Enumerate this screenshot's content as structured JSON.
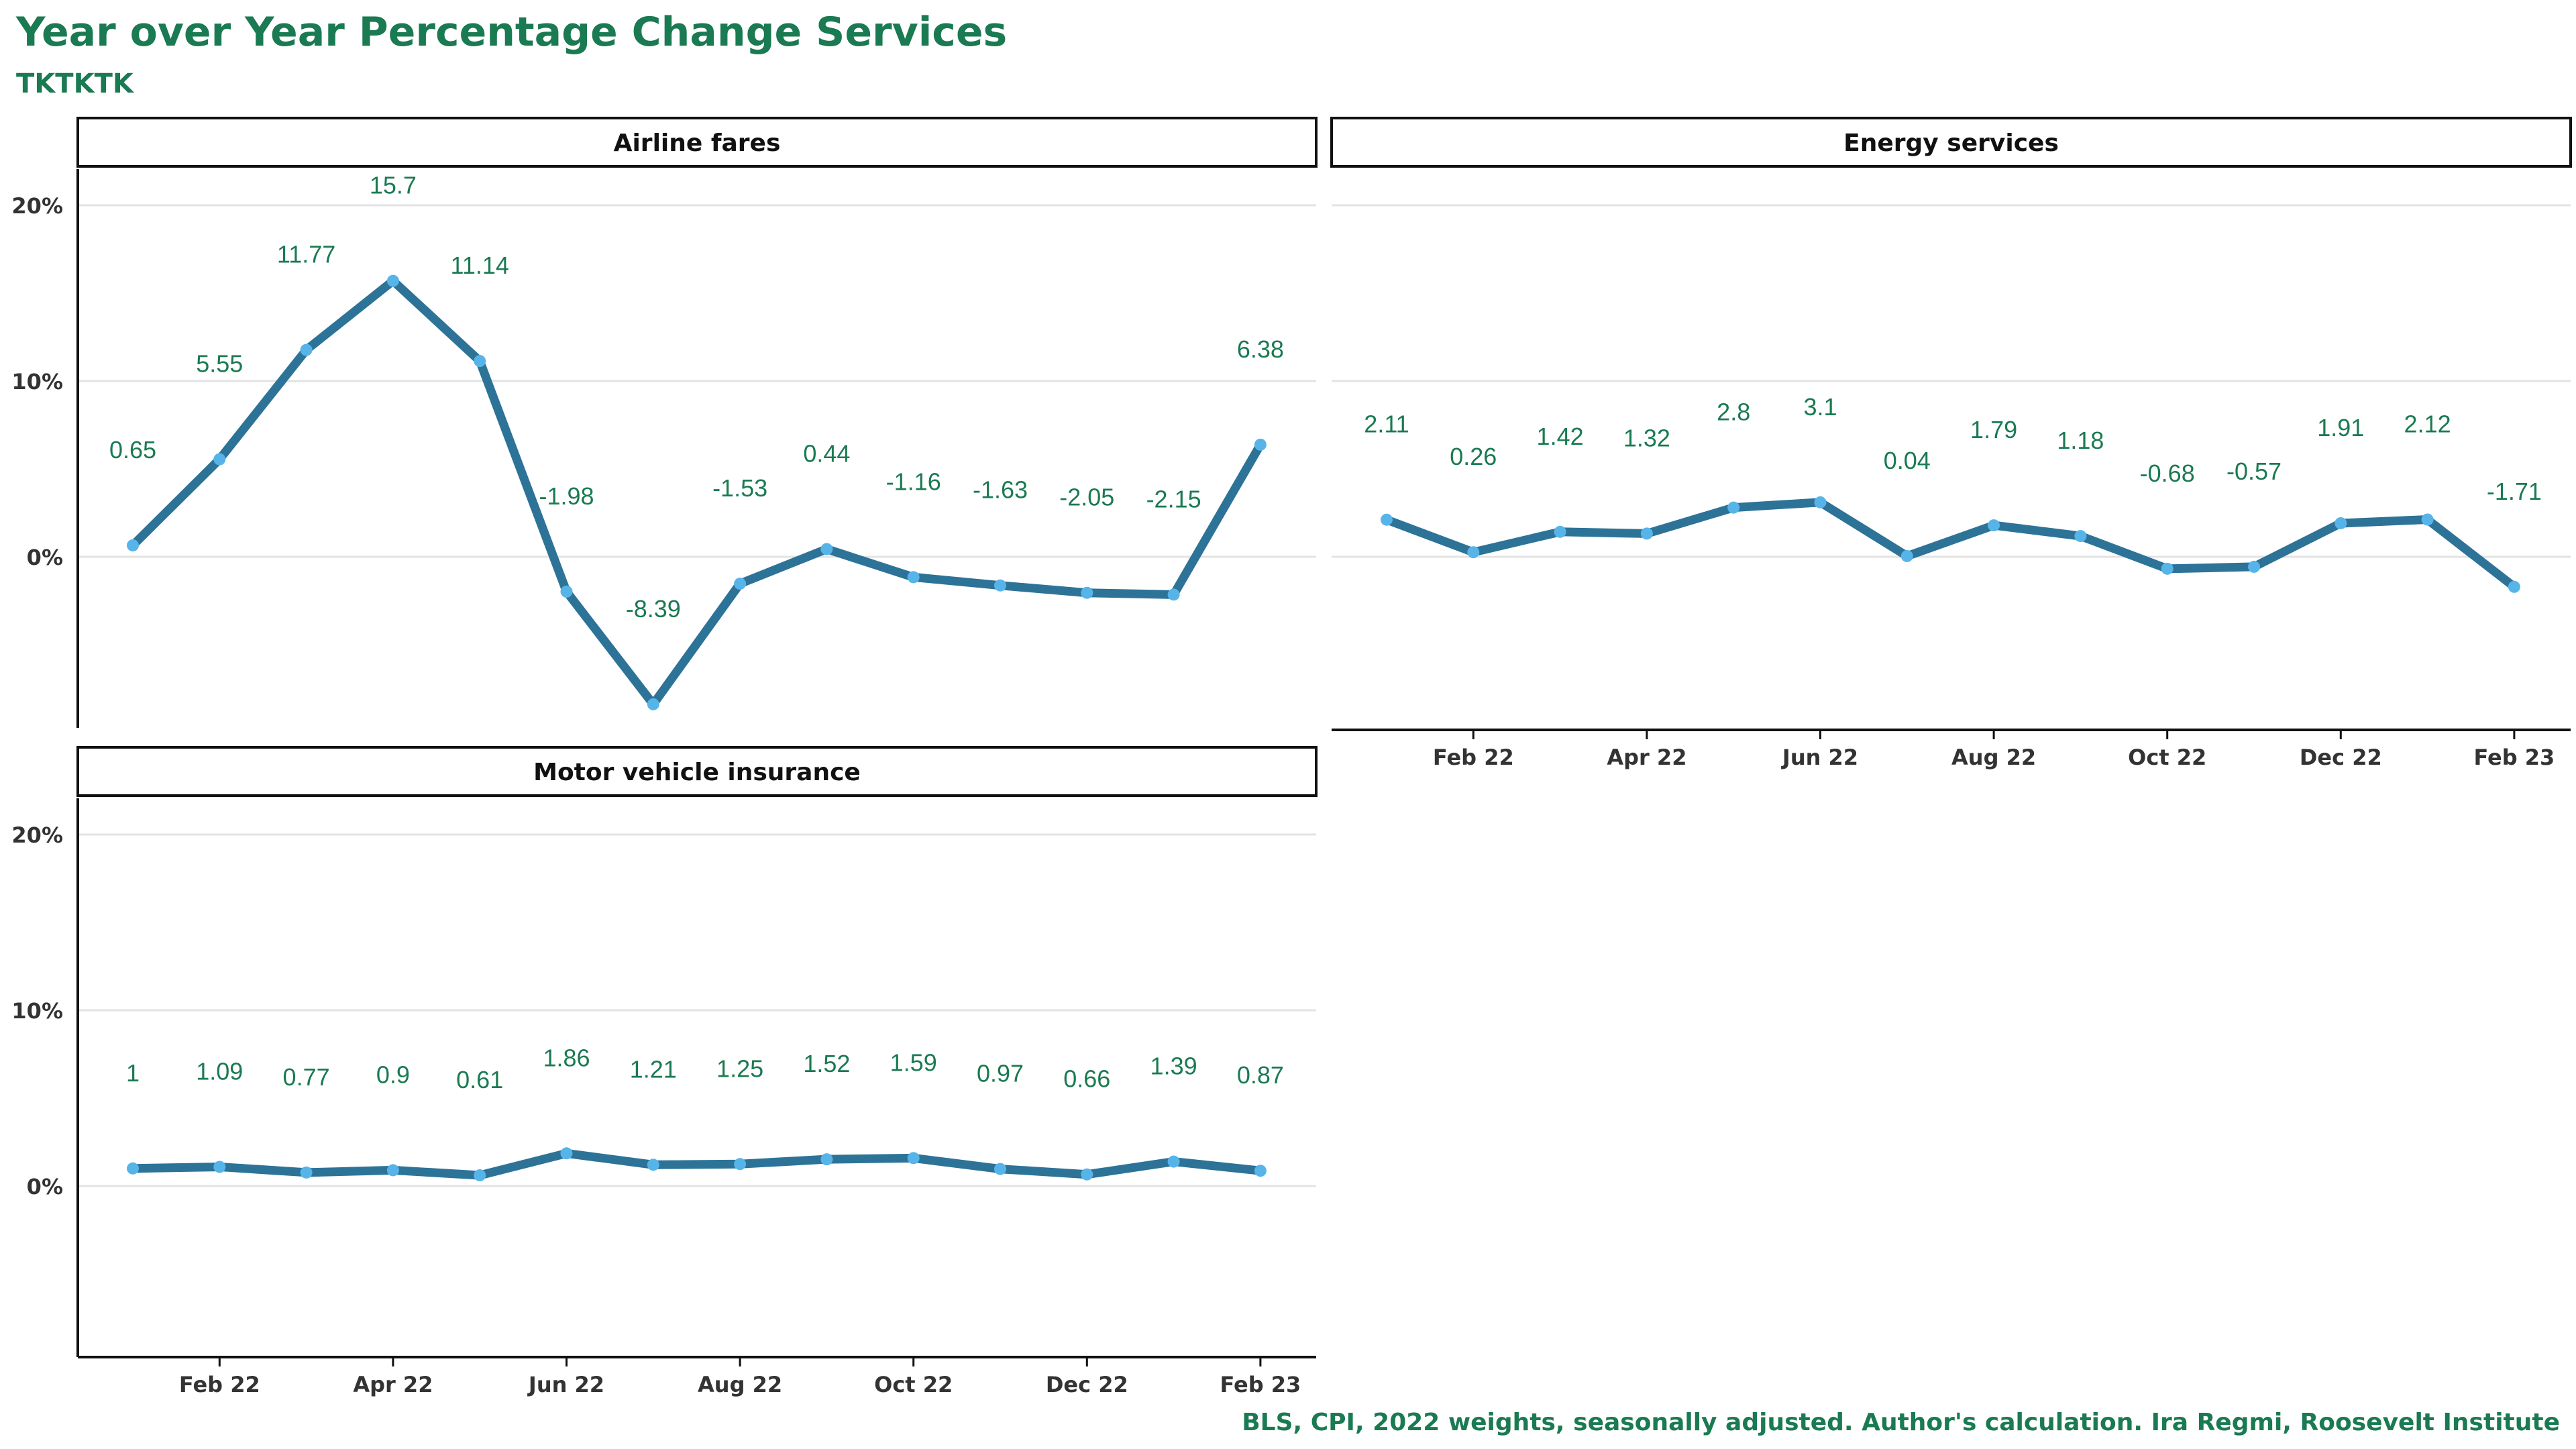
{
  "title": "Year over Year Percentage Change Services",
  "subtitle": "TKTKTK",
  "caption": "BLS, CPI, 2022 weights, seasonally adjusted. Author's calculation. Ira Regmi, Roosevelt Institute",
  "colors": {
    "line": "#2d7398",
    "point": "#56b4e9",
    "label": "#1a7a52",
    "title": "#1a7a52",
    "grid": "#e3e3e3"
  },
  "chart_data": [
    {
      "type": "line",
      "panel_title": "Airline fares",
      "x": [
        "Jan 22",
        "Feb 22",
        "Mar 22",
        "Apr 22",
        "May 22",
        "Jun 22",
        "Jul 22",
        "Aug 22",
        "Sep 22",
        "Oct 22",
        "Nov 22",
        "Dec 22",
        "Jan 23",
        "Feb 23"
      ],
      "values": [
        0.65,
        5.55,
        11.77,
        15.7,
        11.14,
        -1.98,
        -8.39,
        -1.53,
        0.44,
        -1.16,
        -1.63,
        -2.05,
        -2.15,
        6.38
      ],
      "yticks": [
        "0%",
        "10%",
        "20%"
      ],
      "ylim": [
        -9.5,
        20
      ],
      "xtick_labels": []
    },
    {
      "type": "line",
      "panel_title": "Energy services",
      "x": [
        "Jan 22",
        "Feb 22",
        "Mar 22",
        "Apr 22",
        "May 22",
        "Jun 22",
        "Jul 22",
        "Aug 22",
        "Sep 22",
        "Oct 22",
        "Nov 22",
        "Dec 22",
        "Jan 23",
        "Feb 23"
      ],
      "values": [
        2.11,
        0.26,
        1.42,
        1.32,
        2.8,
        3.1,
        0.04,
        1.79,
        1.18,
        -0.68,
        -0.57,
        1.91,
        2.12,
        -1.71
      ],
      "yticks": [],
      "ylim": [
        -9.5,
        20
      ],
      "xtick_labels": [
        "Feb 22",
        "Apr 22",
        "Jun 22",
        "Aug 22",
        "Oct 22",
        "Dec 22",
        "Feb 23"
      ]
    },
    {
      "type": "line",
      "panel_title": "Motor vehicle insurance",
      "x": [
        "Jan 22",
        "Feb 22",
        "Mar 22",
        "Apr 22",
        "May 22",
        "Jun 22",
        "Jul 22",
        "Aug 22",
        "Sep 22",
        "Oct 22",
        "Nov 22",
        "Dec 22",
        "Jan 23",
        "Feb 23"
      ],
      "values": [
        1,
        1.09,
        0.77,
        0.9,
        0.61,
        1.86,
        1.21,
        1.25,
        1.52,
        1.59,
        0.97,
        0.66,
        1.39,
        0.87
      ],
      "yticks": [
        "0%",
        "10%",
        "20%"
      ],
      "ylim": [
        -9.5,
        20
      ],
      "xtick_labels": [
        "Feb 22",
        "Apr 22",
        "Jun 22",
        "Aug 22",
        "Oct 22",
        "Dec 22",
        "Feb 23"
      ]
    }
  ]
}
